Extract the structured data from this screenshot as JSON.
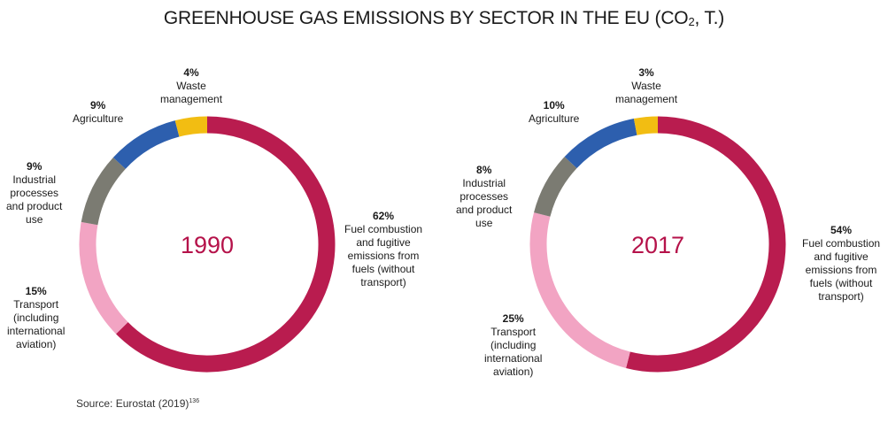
{
  "title": {
    "main": "GREENHOUSE GAS EMISSIONS BY SECTOR IN THE EU (CO",
    "sub": "2",
    "tail": ", T.)"
  },
  "source": {
    "text": "Source: Eurostat (2019)",
    "ref": "136"
  },
  "colors": {
    "fuel": "#b91c4f",
    "transport": "#f2a4c3",
    "industrial": "#7b7b72",
    "agriculture": "#2d5fae",
    "waste": "#f2bd12"
  },
  "chart_data": [
    {
      "type": "pie",
      "center_label": "1990",
      "slices": [
        {
          "key": "fuel",
          "percent": "62%",
          "value": 62,
          "lines": [
            "Fuel combustion",
            "and fugitive",
            "emissions from",
            "fuels (without",
            "transport)"
          ]
        },
        {
          "key": "transport",
          "percent": "15%",
          "value": 15,
          "lines": [
            "Transport",
            "(including",
            "international",
            "aviation)"
          ]
        },
        {
          "key": "industrial",
          "percent": "9%",
          "value": 9,
          "lines": [
            "Industrial",
            "processes",
            "and product",
            "use"
          ]
        },
        {
          "key": "agriculture",
          "percent": "9%",
          "value": 9,
          "lines": [
            "Agriculture"
          ]
        },
        {
          "key": "waste",
          "percent": "4%",
          "value": 4,
          "lines": [
            "Waste",
            "management"
          ]
        }
      ]
    },
    {
      "type": "pie",
      "center_label": "2017",
      "slices": [
        {
          "key": "fuel",
          "percent": "54%",
          "value": 54,
          "lines": [
            "Fuel combustion",
            "and fugitive",
            "emissions from",
            "fuels (without",
            "transport)"
          ]
        },
        {
          "key": "transport",
          "percent": "25%",
          "value": 25,
          "lines": [
            "Transport",
            "(including",
            "international",
            "aviation)"
          ]
        },
        {
          "key": "industrial",
          "percent": "8%",
          "value": 8,
          "lines": [
            "Industrial",
            "processes",
            "and product",
            "use"
          ]
        },
        {
          "key": "agriculture",
          "percent": "10%",
          "value": 10,
          "lines": [
            "Agriculture"
          ]
        },
        {
          "key": "waste",
          "percent": "3%",
          "value": 3,
          "lines": [
            "Waste",
            "management"
          ]
        }
      ]
    }
  ]
}
